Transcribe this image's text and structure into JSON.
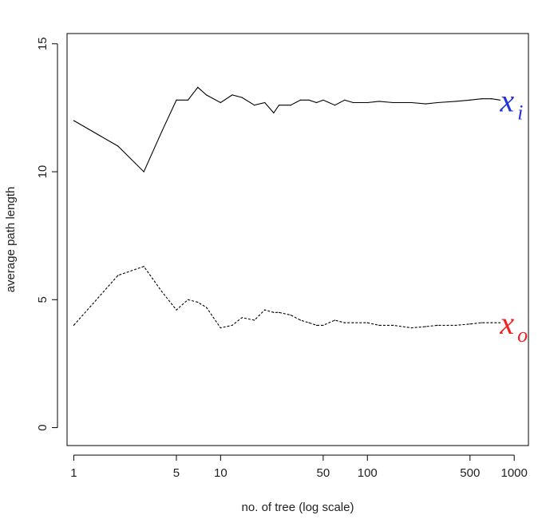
{
  "chart_data": {
    "type": "line",
    "title": "",
    "xlabel": "no. of tree (log scale)",
    "ylabel": "average path length",
    "x_scale": "log",
    "xlim": [
      0.9,
      1250
    ],
    "ylim": [
      -0.7,
      15.4
    ],
    "x_ticks": [
      1,
      5,
      10,
      50,
      100,
      500,
      1000
    ],
    "x_tick_labels": [
      "1",
      "5",
      "10",
      "50",
      "100",
      "500",
      "1000"
    ],
    "y_ticks": [
      0,
      5,
      10,
      15
    ],
    "y_tick_labels": [
      "0",
      "5",
      "10",
      "15"
    ],
    "grid": false,
    "legend": "none",
    "series": [
      {
        "label_main": "x",
        "label_sub": "i",
        "color": "#000000",
        "label_color": "#2233dd",
        "line_style": "solid",
        "x": [
          1,
          2,
          3,
          4,
          5,
          6,
          7,
          8,
          10,
          12,
          14,
          17,
          20,
          23,
          25,
          30,
          35,
          40,
          45,
          50,
          60,
          70,
          80,
          100,
          120,
          150,
          200,
          250,
          300,
          400,
          500,
          600,
          700,
          800
        ],
        "y": [
          12.0,
          11.0,
          10.0,
          11.6,
          12.8,
          12.8,
          13.3,
          13.0,
          12.7,
          13.0,
          12.9,
          12.6,
          12.7,
          12.3,
          12.6,
          12.6,
          12.8,
          12.8,
          12.7,
          12.8,
          12.6,
          12.8,
          12.7,
          12.7,
          12.75,
          12.7,
          12.7,
          12.65,
          12.7,
          12.75,
          12.8,
          12.85,
          12.85,
          12.8
        ]
      },
      {
        "label_main": "x",
        "label_sub": "o",
        "color": "#000000",
        "label_color": "#ee2222",
        "line_style": "dashed",
        "x": [
          1,
          2,
          3,
          4,
          5,
          6,
          7,
          8,
          10,
          12,
          14,
          17,
          20,
          23,
          25,
          30,
          35,
          40,
          45,
          50,
          60,
          70,
          80,
          100,
          120,
          150,
          200,
          250,
          300,
          400,
          500,
          600,
          700,
          800
        ],
        "y": [
          4.0,
          5.95,
          6.3,
          5.3,
          4.6,
          5.0,
          4.9,
          4.7,
          3.9,
          4.0,
          4.3,
          4.2,
          4.6,
          4.5,
          4.5,
          4.4,
          4.2,
          4.1,
          4.0,
          4.0,
          4.2,
          4.1,
          4.1,
          4.1,
          4.0,
          4.0,
          3.9,
          3.95,
          4.0,
          4.0,
          4.05,
          4.1,
          4.1,
          4.1
        ]
      }
    ]
  }
}
